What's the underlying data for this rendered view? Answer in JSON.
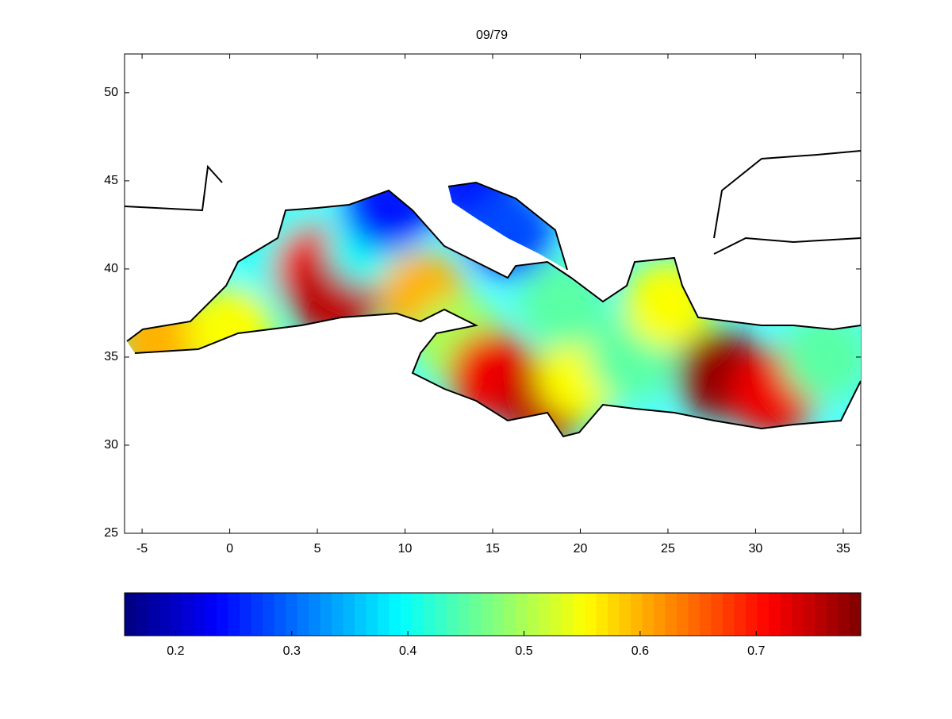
{
  "chart_data": {
    "type": "field-map",
    "title": "09/79",
    "xlim": [
      -6,
      36
    ],
    "xticks": [
      -5,
      0,
      5,
      10,
      15,
      20,
      25,
      30,
      35
    ],
    "ylim": [
      25,
      52.2
    ],
    "yticks": [
      25,
      30,
      35,
      40,
      45,
      50
    ],
    "field": {
      "lon": [
        -4,
        0,
        3,
        5,
        6,
        8,
        9,
        11,
        14,
        16,
        13,
        15,
        18,
        20,
        23,
        25,
        28,
        31,
        34,
        19
      ],
      "lat": [
        36,
        36.5,
        41,
        40,
        38.5,
        41.5,
        43.5,
        38.5,
        44.5,
        42,
        36,
        34,
        32.5,
        34,
        35,
        38,
        34,
        33,
        35,
        38
      ],
      "values": [
        0.6,
        0.55,
        0.4,
        0.72,
        0.75,
        0.4,
        0.25,
        0.6,
        0.25,
        0.28,
        0.5,
        0.72,
        0.75,
        0.55,
        0.45,
        0.55,
        0.78,
        0.72,
        0.45,
        0.45
      ]
    },
    "clim": [
      0.156,
      0.79
    ],
    "cticks": [
      0.2,
      0.3,
      0.4,
      0.5,
      0.6,
      0.7
    ]
  }
}
